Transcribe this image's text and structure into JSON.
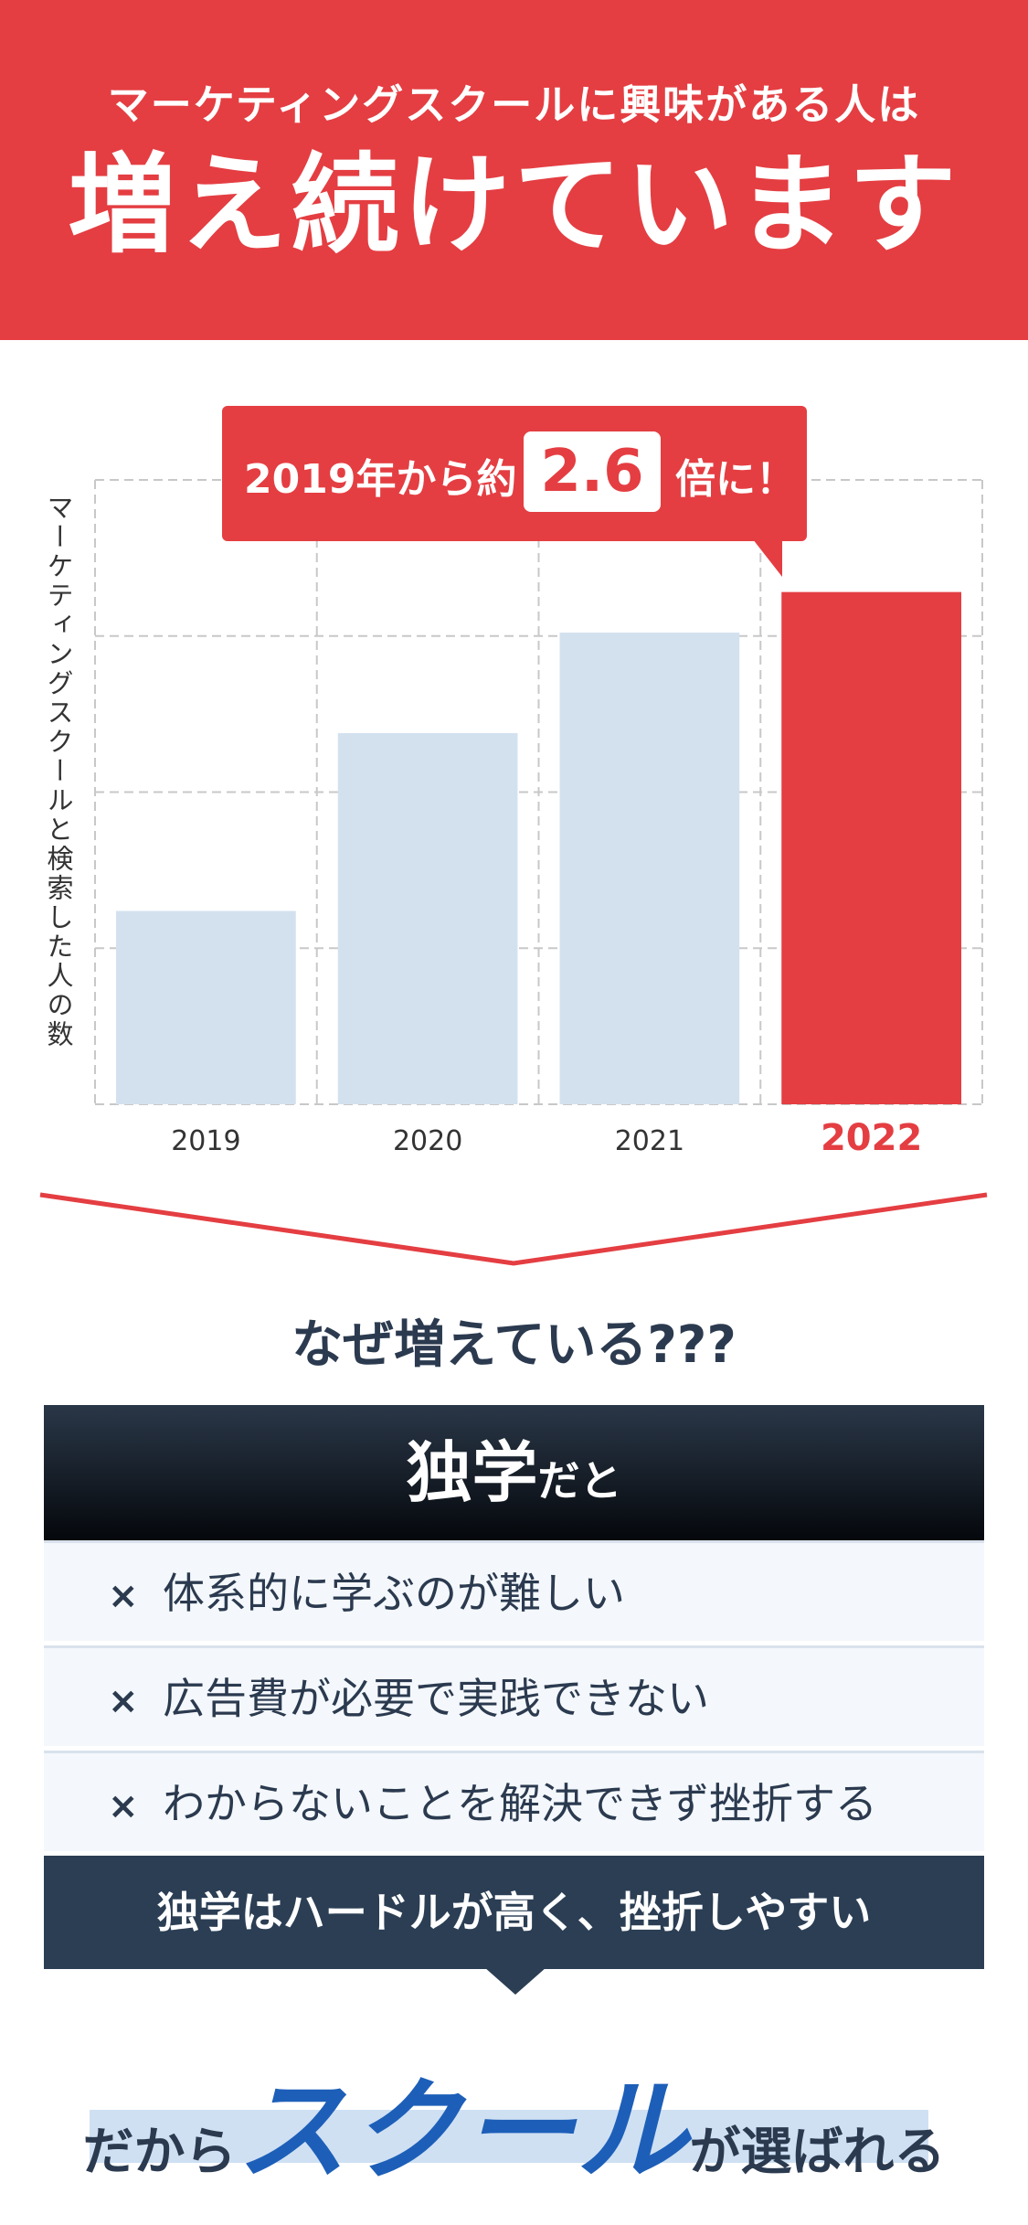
{
  "header": {
    "subtitle": "マーケティングスクールに興味がある人は",
    "title": "増え続けています"
  },
  "callout": {
    "prefix": "2019年から約",
    "value": "2.6",
    "suffix": "倍に！"
  },
  "chart_data": {
    "type": "bar",
    "categories": [
      "2019",
      "2020",
      "2021",
      "2022"
    ],
    "values": [
      1.0,
      1.92,
      2.44,
      2.65
    ],
    "ylim": [
      0,
      3.23
    ],
    "ylabel": "マーケティングスクールと検索した人の数",
    "grid": true,
    "highlight_index": 3,
    "colors": {
      "normal": "#d3e1ef",
      "highlight": "#e43e42",
      "grid": "#c8c8c8"
    }
  },
  "why": {
    "text": "なぜ増えている???"
  },
  "panel": {
    "head_big": "独学",
    "head_small": "だと",
    "items": [
      {
        "mark": "×",
        "text": "体系的に学ぶのが難しい"
      },
      {
        "mark": "×",
        "text": "広告費が必要で実践できない"
      },
      {
        "mark": "×",
        "text": "わからないことを解決できず挫折する"
      }
    ],
    "foot": "独学はハードルが高く、挫折しやすい"
  },
  "bottom": {
    "pre": "だから",
    "emphasis": "スクール",
    "post": "が選ばれる"
  },
  "colors": {
    "accent_red": "#e43e42",
    "navy": "#2b3e54",
    "blue": "#1d5fb8"
  }
}
